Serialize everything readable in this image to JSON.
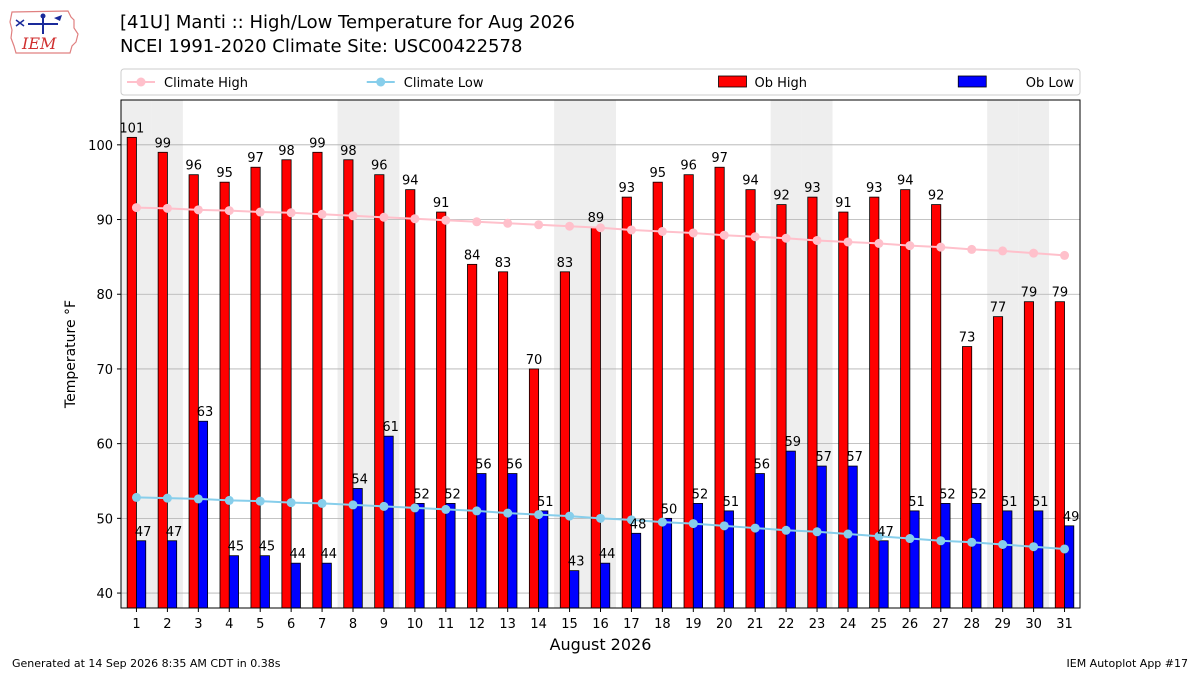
{
  "header": {
    "title_line1": "[41U] Manti :: High/Low Temperature for Aug 2026",
    "title_line2": "NCEI 1991-2020 Climate Site: USC00422578",
    "logo_text": "IEM"
  },
  "footer": {
    "left": "Generated at 14 Sep 2026 8:35 AM CDT in 0.38s",
    "right": "IEM Autoplot App #17"
  },
  "colors": {
    "ob_high": "#ff0000",
    "ob_low": "#0000ff",
    "climate_high": "#ffc0cb",
    "climate_low": "#87ceeb",
    "weekend_band": "#eeeeee",
    "grid": "#b0b0b0"
  },
  "chart_data": {
    "type": "bar",
    "xlabel": "August 2026",
    "ylabel": "Temperature °F",
    "ylim": [
      38,
      106
    ],
    "yticks": [
      40,
      50,
      60,
      70,
      80,
      90,
      100
    ],
    "grid": true,
    "legend_position": "top",
    "categories": [
      1,
      2,
      3,
      4,
      5,
      6,
      7,
      8,
      9,
      10,
      11,
      12,
      13,
      14,
      15,
      16,
      17,
      18,
      19,
      20,
      21,
      22,
      23,
      24,
      25,
      26,
      27,
      28,
      29,
      30,
      31
    ],
    "shaded_days": [
      1,
      2,
      8,
      9,
      15,
      16,
      22,
      23,
      29,
      30
    ],
    "series": [
      {
        "name": "Ob High",
        "kind": "bar",
        "color": "#ff0000",
        "values": [
          101,
          99,
          96,
          95,
          97,
          98,
          99,
          98,
          96,
          94,
          91,
          84,
          83,
          70,
          83,
          89,
          93,
          95,
          96,
          97,
          94,
          92,
          93,
          91,
          93,
          94,
          92,
          73,
          77,
          79,
          79
        ]
      },
      {
        "name": "Ob Low",
        "kind": "bar",
        "color": "#0000ff",
        "values": [
          47,
          47,
          63,
          45,
          45,
          44,
          44,
          54,
          61,
          52,
          52,
          56,
          56,
          51,
          43,
          44,
          48,
          50,
          52,
          51,
          56,
          59,
          57,
          57,
          47,
          51,
          52,
          52,
          51,
          51,
          49
        ]
      },
      {
        "name": "Climate High",
        "kind": "line",
        "color": "#ffc0cb",
        "values": [
          91.6,
          91.5,
          91.3,
          91.2,
          91.0,
          90.9,
          90.7,
          90.5,
          90.3,
          90.1,
          89.9,
          89.7,
          89.5,
          89.3,
          89.1,
          88.9,
          88.6,
          88.4,
          88.2,
          87.9,
          87.7,
          87.5,
          87.2,
          87.0,
          86.8,
          86.5,
          86.3,
          86.0,
          85.8,
          85.5,
          85.2
        ]
      },
      {
        "name": "Climate Low",
        "kind": "line",
        "color": "#87ceeb",
        "values": [
          52.8,
          52.7,
          52.6,
          52.4,
          52.3,
          52.1,
          52.0,
          51.8,
          51.6,
          51.4,
          51.2,
          51.0,
          50.7,
          50.5,
          50.3,
          50.0,
          49.8,
          49.5,
          49.3,
          49.0,
          48.7,
          48.4,
          48.2,
          47.9,
          47.6,
          47.3,
          47.0,
          46.8,
          46.5,
          46.2,
          45.9
        ]
      }
    ]
  }
}
